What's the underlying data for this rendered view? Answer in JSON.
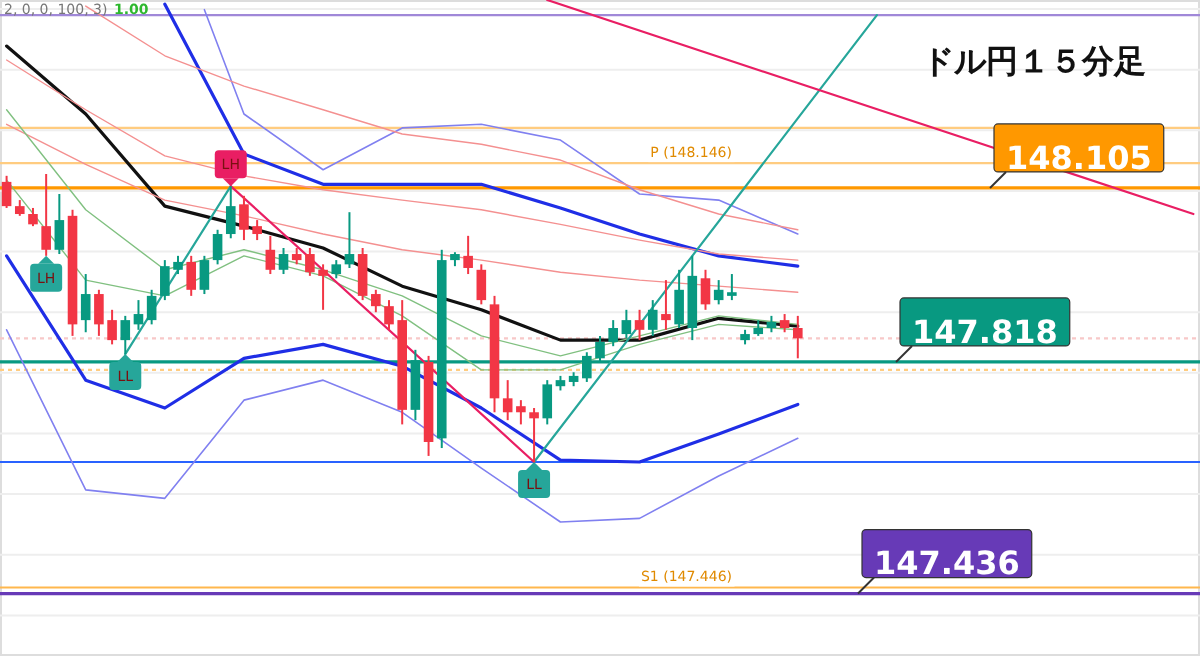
{
  "chart_data": {
    "type": "candlestick",
    "title": "ドル円１５分足",
    "categories": [
      null,
      null,
      null,
      null,
      null,
      null,
      null,
      null,
      null,
      null,
      null,
      null,
      null,
      null,
      null,
      null,
      null,
      null,
      null,
      null,
      null,
      null,
      null,
      null,
      null,
      null,
      null,
      null,
      null,
      null,
      null,
      null,
      null,
      null,
      null,
      null,
      null,
      null,
      null,
      null,
      null,
      null,
      null,
      null,
      null,
      null,
      null,
      null,
      null,
      null,
      null,
      null,
      null,
      null,
      null,
      null,
      null,
      null,
      null,
      null,
      null,
      null,
      null,
      null,
      null,
      null,
      null,
      null,
      null,
      null,
      null,
      null,
      null,
      null,
      null,
      null,
      null,
      null,
      null,
      null,
      null,
      null,
      null,
      null,
      null,
      null,
      null,
      null,
      null,
      null,
      null
    ],
    "ohlc": [
      [
        148.115,
        148.125,
        148.072,
        148.075
      ],
      [
        148.075,
        148.085,
        148.059,
        148.062
      ],
      [
        148.062,
        148.072,
        148.042,
        148.045
      ],
      [
        148.042,
        148.128,
        147.993,
        148.003
      ],
      [
        148.003,
        148.095,
        147.996,
        148.052
      ],
      [
        148.059,
        148.069,
        147.861,
        147.88
      ],
      [
        147.887,
        147.963,
        147.867,
        147.93
      ],
      [
        147.93,
        147.937,
        147.861,
        147.88
      ],
      [
        147.887,
        147.904,
        147.847,
        147.854
      ],
      [
        147.854,
        147.894,
        147.831,
        147.887
      ],
      [
        147.88,
        147.92,
        147.871,
        147.897
      ],
      [
        147.887,
        147.937,
        147.88,
        147.927
      ],
      [
        147.927,
        147.986,
        147.92,
        147.976
      ],
      [
        147.97,
        147.993,
        147.963,
        147.983
      ],
      [
        147.983,
        147.993,
        147.927,
        147.937
      ],
      [
        147.937,
        147.993,
        147.93,
        147.986
      ],
      [
        147.986,
        148.036,
        147.979,
        148.029
      ],
      [
        148.029,
        148.108,
        148.022,
        148.075
      ],
      [
        148.078,
        148.092,
        148.019,
        148.036
      ],
      [
        148.042,
        148.052,
        148.019,
        148.029
      ],
      [
        148.003,
        148.026,
        147.963,
        147.97
      ],
      [
        147.97,
        148.006,
        147.963,
        147.996
      ],
      [
        147.996,
        148.006,
        147.979,
        147.986
      ],
      [
        147.996,
        148.006,
        147.96,
        147.966
      ],
      [
        147.97,
        147.979,
        147.904,
        147.96
      ],
      [
        147.963,
        147.986,
        147.956,
        147.979
      ],
      [
        147.979,
        148.065,
        147.973,
        147.996
      ],
      [
        147.996,
        148.006,
        147.92,
        147.927
      ],
      [
        147.93,
        147.937,
        147.9,
        147.91
      ],
      [
        147.91,
        147.92,
        147.871,
        147.88
      ],
      [
        147.887,
        147.92,
        147.715,
        147.739
      ],
      [
        147.739,
        147.838,
        147.722,
        147.821
      ],
      [
        147.818,
        147.828,
        147.663,
        147.686
      ],
      [
        147.692,
        148.003,
        147.676,
        147.986
      ],
      [
        147.986,
        147.999,
        147.976,
        147.996
      ],
      [
        147.993,
        148.026,
        147.963,
        147.973
      ],
      [
        147.97,
        147.979,
        147.913,
        147.92
      ],
      [
        147.913,
        147.927,
        147.735,
        147.758
      ],
      [
        147.758,
        147.788,
        147.722,
        147.735
      ],
      [
        147.745,
        147.755,
        147.715,
        147.735
      ],
      [
        147.735,
        147.742,
        147.653,
        147.725
      ],
      [
        147.725,
        147.788,
        147.715,
        147.781
      ],
      [
        147.778,
        147.795,
        147.771,
        147.788
      ],
      [
        147.785,
        147.801,
        147.778,
        147.795
      ],
      [
        147.791,
        147.834,
        147.785,
        147.828
      ],
      [
        147.824,
        147.861,
        147.818,
        147.851
      ],
      [
        147.851,
        147.887,
        147.844,
        147.874
      ],
      [
        147.864,
        147.904,
        147.857,
        147.887
      ],
      [
        147.887,
        147.904,
        147.854,
        147.871
      ],
      [
        147.871,
        147.92,
        147.861,
        147.904
      ],
      [
        147.897,
        147.953,
        147.871,
        147.887
      ],
      [
        147.88,
        147.97,
        147.874,
        147.937
      ],
      [
        147.874,
        147.993,
        147.854,
        147.96
      ],
      [
        147.956,
        147.97,
        147.904,
        147.913
      ],
      [
        147.92,
        147.953,
        147.913,
        147.937
      ],
      [
        147.927,
        147.963,
        147.92,
        147.933
      ],
      [
        147.854,
        147.871,
        147.847,
        147.864
      ],
      [
        147.864,
        147.887,
        147.861,
        147.874
      ],
      [
        147.874,
        147.894,
        147.867,
        147.884
      ],
      [
        147.887,
        147.897,
        147.867,
        147.874
      ],
      [
        147.874,
        147.894,
        147.824,
        147.857
      ],
      null,
      null,
      null,
      null,
      null,
      null,
      null,
      null,
      null,
      null,
      null,
      null,
      null,
      null,
      null,
      null,
      null,
      null,
      null,
      null,
      null,
      null,
      null,
      null,
      null,
      null,
      null,
      null,
      null,
      null
    ],
    "series": [
      {
        "type": "line",
        "color": "#111111",
        "values": [
          148.339,
          null,
          null,
          null,
          null,
          null,
          148.227,
          null,
          null,
          null,
          null,
          null,
          148.075,
          null,
          null,
          null,
          null,
          null,
          148.042,
          null,
          null,
          null,
          null,
          null,
          148.006,
          null,
          null,
          null,
          null,
          null,
          147.943,
          null,
          null,
          null,
          null,
          null,
          147.904,
          null,
          null,
          null,
          null,
          null,
          147.854,
          null,
          null,
          null,
          null,
          null,
          147.854,
          null,
          null,
          null,
          null,
          null,
          147.89,
          null,
          null,
          null,
          null,
          null,
          147.877,
          null,
          null,
          null,
          null,
          null,
          null,
          null,
          null,
          null,
          null,
          null,
          null,
          null,
          null,
          null,
          null,
          null,
          null,
          null,
          null,
          null,
          null,
          null,
          null,
          null,
          null,
          null,
          null,
          null,
          null
        ]
      },
      {
        "type": "line",
        "color": "#1f2ee6",
        "values": [
          null,
          null,
          null,
          null,
          null,
          null,
          null,
          null,
          null,
          null,
          null,
          null,
          148.408,
          null,
          null,
          null,
          null,
          null,
          148.161,
          null,
          null,
          null,
          null,
          null,
          148.111,
          null,
          null,
          null,
          null,
          null,
          148.111,
          null,
          null,
          null,
          null,
          null,
          148.111,
          null,
          null,
          null,
          null,
          null,
          148.072,
          null,
          null,
          null,
          null,
          null,
          148.029,
          null,
          null,
          null,
          null,
          null,
          147.993,
          null,
          null,
          null,
          null,
          null,
          147.976,
          null,
          null,
          null,
          null,
          null,
          null,
          null,
          null,
          null,
          null,
          null,
          null,
          null,
          null,
          null,
          null,
          null,
          null,
          null,
          null,
          null,
          null,
          null,
          null,
          null,
          null,
          null,
          null,
          null,
          null
        ]
      },
      {
        "type": "line",
        "color": "#1f2ee6",
        "values": [
          147.993,
          null,
          null,
          null,
          null,
          null,
          147.788,
          null,
          null,
          null,
          null,
          null,
          147.742,
          null,
          null,
          null,
          null,
          null,
          147.824,
          null,
          null,
          null,
          null,
          null,
          147.847,
          null,
          null,
          null,
          null,
          null,
          147.811,
          null,
          null,
          null,
          null,
          null,
          147.742,
          null,
          null,
          null,
          null,
          null,
          147.656,
          null,
          null,
          null,
          null,
          null,
          147.653,
          null,
          null,
          null,
          null,
          null,
          147.699,
          null,
          null,
          null,
          null,
          null,
          147.748,
          null,
          null,
          null,
          null,
          null,
          null,
          null,
          null,
          null,
          null,
          null,
          null,
          null,
          null,
          null,
          null,
          null,
          null,
          null,
          null,
          null,
          null,
          null,
          null,
          null,
          null,
          null,
          null,
          null,
          null
        ]
      },
      {
        "type": "line",
        "color": "#8080f0",
        "values": [
          null,
          null,
          null,
          null,
          null,
          null,
          null,
          null,
          null,
          null,
          null,
          null,
          null,
          null,
          null,
          148.399,
          null,
          null,
          148.227,
          null,
          null,
          null,
          null,
          null,
          148.135,
          null,
          null,
          null,
          null,
          null,
          148.204,
          null,
          null,
          null,
          null,
          null,
          148.21,
          null,
          null,
          null,
          null,
          null,
          148.184,
          null,
          null,
          null,
          null,
          null,
          148.095,
          null,
          null,
          null,
          null,
          null,
          148.085,
          null,
          null,
          null,
          null,
          null,
          148.029,
          null,
          null,
          null,
          null,
          null,
          null,
          null,
          null,
          null,
          null,
          null,
          null,
          null,
          null,
          null,
          null,
          null,
          null,
          null,
          null,
          null,
          null,
          null,
          null,
          null,
          null,
          null,
          null,
          null,
          null
        ]
      },
      {
        "type": "line",
        "color": "#8080f0",
        "values": [
          147.871,
          null,
          null,
          null,
          null,
          null,
          147.607,
          null,
          null,
          null,
          null,
          null,
          147.593,
          null,
          null,
          null,
          null,
          null,
          147.755,
          null,
          null,
          null,
          null,
          null,
          147.788,
          null,
          null,
          null,
          null,
          null,
          147.735,
          null,
          null,
          null,
          null,
          null,
          147.643,
          null,
          null,
          null,
          null,
          null,
          147.554,
          null,
          null,
          null,
          null,
          null,
          147.56,
          null,
          null,
          null,
          null,
          null,
          147.63,
          null,
          null,
          null,
          null,
          null,
          147.692,
          null,
          null,
          null,
          null,
          null,
          null,
          null,
          null,
          null,
          null,
          null,
          null,
          null,
          null,
          null,
          null,
          null,
          null,
          null,
          null,
          null,
          null,
          null,
          null,
          null,
          null,
          null,
          null,
          null,
          null
        ]
      },
      {
        "type": "line",
        "color": "#f49090",
        "values": [
          null,
          null,
          null,
          null,
          null,
          null,
          148.405,
          null,
          null,
          null,
          null,
          null,
          148.323,
          null,
          null,
          null,
          null,
          null,
          148.273,
          null,
          null,
          null,
          null,
          null,
          148.234,
          null,
          null,
          null,
          null,
          null,
          148.194,
          null,
          null,
          null,
          null,
          null,
          148.177,
          null,
          null,
          null,
          null,
          null,
          148.151,
          null,
          null,
          null,
          null,
          null,
          148.102,
          null,
          null,
          null,
          null,
          null,
          148.062,
          null,
          null,
          null,
          null,
          null,
          148.036,
          null,
          null,
          null,
          null,
          null,
          null,
          null,
          null,
          null,
          null,
          null,
          null,
          null,
          null,
          null,
          null,
          null,
          null,
          null,
          null,
          null,
          null,
          null,
          null,
          null,
          null,
          null,
          null,
          null,
          null
        ]
      },
      {
        "type": "line",
        "color": "#f49090",
        "values": [
          148.316,
          null,
          null,
          null,
          null,
          null,
          148.234,
          null,
          null,
          null,
          null,
          null,
          148.158,
          null,
          null,
          null,
          null,
          null,
          148.125,
          null,
          null,
          null,
          null,
          null,
          148.102,
          null,
          null,
          null,
          null,
          null,
          148.085,
          null,
          null,
          null,
          null,
          null,
          148.069,
          null,
          null,
          null,
          null,
          null,
          148.045,
          null,
          null,
          null,
          null,
          null,
          148.019,
          null,
          null,
          null,
          null,
          null,
          147.996,
          null,
          null,
          null,
          null,
          null,
          147.986,
          null,
          null,
          null,
          null,
          null,
          null,
          null,
          null,
          null,
          null,
          null,
          null,
          null,
          null,
          null,
          null,
          null,
          null,
          null,
          null,
          null,
          null,
          null,
          null,
          null,
          null,
          null,
          null,
          null,
          null
        ]
      },
      {
        "type": "line",
        "color": "#f49090",
        "values": [
          148.21,
          null,
          null,
          null,
          null,
          null,
          148.144,
          null,
          null,
          null,
          null,
          null,
          148.085,
          null,
          null,
          null,
          null,
          null,
          148.059,
          null,
          null,
          null,
          null,
          null,
          148.029,
          null,
          null,
          null,
          null,
          null,
          148.003,
          null,
          null,
          null,
          null,
          null,
          147.986,
          null,
          null,
          null,
          null,
          null,
          147.966,
          null,
          null,
          null,
          null,
          null,
          147.953,
          null,
          null,
          null,
          null,
          null,
          147.943,
          null,
          null,
          null,
          null,
          null,
          147.933,
          null,
          null,
          null,
          null,
          null,
          null,
          null,
          null,
          null,
          null,
          null,
          null,
          null,
          null,
          null,
          null,
          null,
          null,
          null,
          null,
          null,
          null,
          null,
          null,
          null,
          null,
          null,
          null,
          null,
          null
        ]
      },
      {
        "type": "line",
        "color": "#80c080",
        "values": [
          148.234,
          null,
          null,
          null,
          null,
          null,
          148.069,
          null,
          null,
          null,
          null,
          null,
          147.97,
          null,
          null,
          null,
          null,
          null,
          148.003,
          null,
          null,
          null,
          null,
          null,
          147.97,
          null,
          null,
          null,
          null,
          null,
          147.927,
          null,
          null,
          null,
          null,
          null,
          147.861,
          null,
          null,
          null,
          null,
          null,
          147.828,
          null,
          null,
          null,
          null,
          null,
          147.861,
          null,
          null,
          null,
          null,
          null,
          147.894,
          null,
          null,
          null,
          null,
          null,
          147.88,
          null,
          null,
          null,
          null,
          null,
          null,
          null,
          null,
          null,
          null,
          null,
          null,
          null,
          null,
          null,
          null,
          null,
          null,
          null,
          null,
          null,
          null,
          null,
          null,
          null,
          null,
          null,
          null,
          null,
          null
        ]
      },
      {
        "type": "line",
        "color": "#80c080",
        "values": [
          148.118,
          null,
          null,
          null,
          null,
          null,
          147.953,
          null,
          null,
          null,
          null,
          null,
          147.927,
          null,
          null,
          null,
          null,
          null,
          147.993,
          null,
          null,
          null,
          null,
          null,
          147.96,
          null,
          null,
          null,
          null,
          null,
          147.894,
          null,
          null,
          null,
          null,
          null,
          147.805,
          null,
          null,
          null,
          null,
          null,
          147.805,
          null,
          null,
          null,
          null,
          null,
          147.847,
          null,
          null,
          null,
          null,
          null,
          147.88,
          null,
          null,
          null,
          null,
          null,
          147.871,
          null,
          null,
          null,
          null,
          null,
          null,
          null,
          null,
          null,
          null,
          null,
          null,
          null,
          null,
          null,
          null,
          null,
          null,
          null,
          null,
          null,
          null,
          null,
          null,
          null,
          null,
          null,
          null,
          null,
          null
        ]
      },
      {
        "type": "line",
        "color": "#26a69a",
        "values": [
          null,
          null,
          null,
          null,
          null,
          null,
          null,
          null,
          null,
          147.831,
          null,
          null,
          null,
          null,
          null,
          null,
          null,
          148.108,
          null,
          null,
          null,
          null,
          null,
          null,
          null,
          null,
          null,
          null,
          null,
          null,
          null,
          null,
          null,
          null,
          null,
          null,
          null,
          null,
          null,
          null,
          null,
          null,
          null,
          null,
          null,
          null,
          null,
          null,
          null,
          null,
          null,
          null,
          null,
          null,
          null,
          null,
          null,
          null,
          null,
          null,
          null,
          null,
          null,
          null,
          null,
          null,
          null,
          null,
          null,
          null,
          null,
          null,
          null,
          null,
          null,
          null,
          null,
          null,
          null,
          null,
          null,
          null,
          null,
          null,
          null,
          null,
          null,
          null,
          null,
          null,
          null
        ]
      },
      {
        "type": "line",
        "color": "#26a69a",
        "values": [
          null,
          null,
          null,
          null,
          null,
          null,
          null,
          null,
          null,
          null,
          null,
          null,
          null,
          null,
          null,
          null,
          null,
          null,
          null,
          null,
          null,
          null,
          null,
          null,
          null,
          null,
          null,
          null,
          null,
          null,
          null,
          null,
          null,
          null,
          null,
          null,
          null,
          null,
          null,
          null,
          147.653,
          null,
          null,
          null,
          null,
          null,
          null,
          null,
          null,
          null,
          null,
          null,
          147.993,
          null,
          null,
          null,
          null,
          null,
          null,
          null,
          null,
          null,
          null,
          null,
          null,
          null,
          148.39,
          null,
          null,
          null,
          null,
          null,
          null,
          null,
          null,
          null,
          null,
          null,
          null,
          null,
          null,
          null,
          null,
          null,
          null,
          null,
          null,
          null,
          null,
          null,
          null
        ]
      },
      {
        "type": "line",
        "color": "#e91e63",
        "values": [
          null,
          null,
          null,
          null,
          null,
          null,
          null,
          null,
          null,
          null,
          null,
          null,
          null,
          null,
          null,
          null,
          null,
          148.108,
          null,
          null,
          null,
          null,
          null,
          null,
          null,
          null,
          null,
          null,
          null,
          null,
          null,
          null,
          null,
          null,
          null,
          null,
          null,
          null,
          null,
          null,
          147.653,
          null,
          null,
          null,
          null,
          null,
          null,
          null,
          null,
          null,
          null,
          null,
          null,
          null,
          null,
          null,
          null,
          null,
          null,
          null,
          null,
          null,
          null,
          null,
          null,
          null,
          null,
          null,
          null,
          null,
          null,
          null,
          null,
          null,
          null,
          null,
          null,
          null,
          null,
          null,
          null,
          null,
          null,
          null,
          null,
          null,
          null,
          null,
          null,
          null,
          null
        ]
      },
      {
        "type": "line",
        "color": "#e91e63",
        "values": [
          null,
          null,
          null,
          null,
          null,
          null,
          null,
          null,
          null,
          null,
          null,
          null,
          null,
          null,
          null,
          null,
          null,
          null,
          null,
          null,
          null,
          null,
          null,
          null,
          null,
          null,
          null,
          null,
          null,
          null,
          null,
          null,
          null,
          null,
          null,
          null,
          null,
          null,
          null,
          null,
          null,
          148.415,
          null,
          null,
          null,
          null,
          null,
          null,
          null,
          null,
          null,
          null,
          null,
          null,
          null,
          null,
          null,
          null,
          null,
          null,
          null,
          null,
          null,
          null,
          null,
          null,
          null,
          null,
          null,
          null,
          null,
          null,
          null,
          null,
          null,
          null,
          null,
          null,
          null,
          null,
          null,
          null,
          null,
          null,
          null,
          null,
          null,
          null,
          null,
          null,
          148.062
        ]
      }
    ],
    "ref_lines": [
      {
        "axis": "y",
        "value": 148.39,
        "color": "#a088d8"
      },
      {
        "axis": "y",
        "value": 148.204,
        "color": "#ffcc80"
      },
      {
        "axis": "y",
        "value": 148.146,
        "label": "P (148.146)",
        "color": "#ffcc80"
      },
      {
        "axis": "y",
        "value": 148.105,
        "label": "148.105",
        "color": "#ff9800"
      },
      {
        "axis": "y",
        "value": 147.857,
        "color": "#f8c8c8",
        "line_style": "dotted"
      },
      {
        "axis": "y",
        "value": 147.818,
        "label": "147.818",
        "color": "#089981"
      },
      {
        "axis": "y",
        "value": 147.805,
        "color": "#ffcc80",
        "line_style": "dotted"
      },
      {
        "axis": "y",
        "value": 147.653,
        "color": "#2962ff"
      },
      {
        "axis": "y",
        "value": 147.446,
        "label": "S1 (147.446)",
        "color": "#ffb74d"
      },
      {
        "axis": "y",
        "value": 147.436,
        "label": "147.436",
        "color": "#673ab7"
      }
    ],
    "annotations": [
      "2, 0, 0, 100, 3)",
      "1.00",
      {
        "text": "LL",
        "y": 147.831
      },
      {
        "text": "LH",
        "y": 148.108
      },
      {
        "text": "LL",
        "y": 147.653
      },
      {
        "text": "LH",
        "y": 147.993
      }
    ],
    "yticks": [
      {
        "value": 147.4,
        "label": null
      },
      {
        "value": 147.5,
        "label": null
      },
      {
        "value": 147.6,
        "label": null
      },
      {
        "value": 147.7,
        "label": null
      },
      {
        "value": 147.8,
        "label": null
      },
      {
        "value": 147.9,
        "label": null
      },
      {
        "value": 148.0,
        "label": null
      },
      {
        "value": 148.1,
        "label": null
      },
      {
        "value": 148.2,
        "label": null
      },
      {
        "value": 148.3,
        "label": null
      },
      {
        "value": 148.4,
        "label": null
      }
    ],
    "ylim": [
      147.333,
      148.415
    ],
    "grid": "y",
    "tick_labels": false
  }
}
